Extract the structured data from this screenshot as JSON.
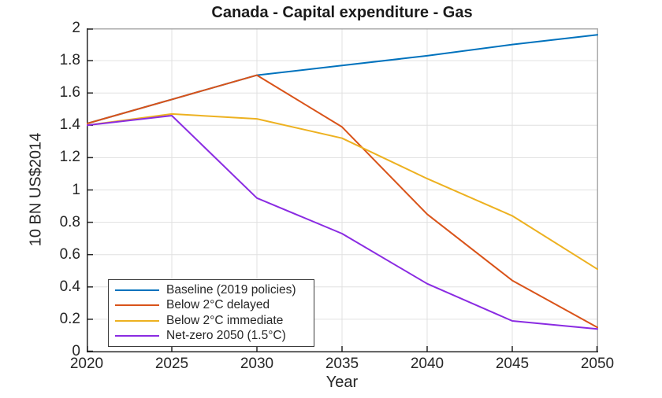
{
  "figure": {
    "background": "#ffffff",
    "text_color": "#262626",
    "axis_color": "#262626",
    "grid_color": "#e0e0e0",
    "box_color": "#ababab"
  },
  "chart_data": {
    "type": "line",
    "title": "Canada - Capital expenditure - Gas",
    "xlabel": "Year",
    "ylabel": "10 BN US$2014",
    "x": [
      2020,
      2025,
      2030,
      2035,
      2040,
      2045,
      2050
    ],
    "xlim": [
      2020,
      2050
    ],
    "ylim": [
      0,
      2
    ],
    "xtick_labels": [
      "2020",
      "2025",
      "2030",
      "2035",
      "2040",
      "2045",
      "2050"
    ],
    "ytick_values": [
      0,
      0.2,
      0.4,
      0.6,
      0.8,
      1,
      1.2,
      1.4,
      1.6,
      1.8,
      2
    ],
    "ytick_labels": [
      "0",
      "0.2",
      "0.4",
      "0.6",
      "0.8",
      "1",
      "1.2",
      "1.4",
      "1.6",
      "1.8",
      "2"
    ],
    "grid": true,
    "legend_position": "bottom-left",
    "series": [
      {
        "name": "Baseline (2019 policies)",
        "color": "#0072BD",
        "values": [
          1.41,
          1.56,
          1.71,
          1.77,
          1.83,
          1.9,
          1.96
        ]
      },
      {
        "name": "Below 2°C delayed",
        "color": "#D95319",
        "values": [
          1.41,
          1.56,
          1.71,
          1.39,
          0.85,
          0.44,
          0.15
        ]
      },
      {
        "name": "Below 2°C immediate",
        "color": "#EDB120",
        "values": [
          1.4,
          1.47,
          1.44,
          1.32,
          1.07,
          0.84,
          0.51
        ]
      },
      {
        "name": "Net-zero 2050 (1.5°C)",
        "color": "#8A2BE2",
        "values": [
          1.4,
          1.46,
          0.95,
          0.73,
          0.42,
          0.19,
          0.14
        ]
      }
    ]
  }
}
